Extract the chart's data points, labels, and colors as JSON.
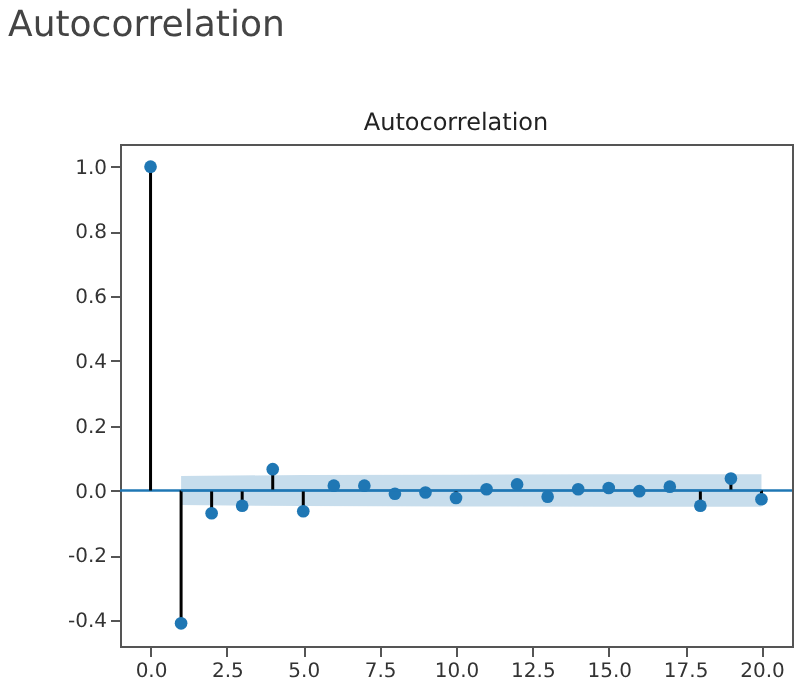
{
  "chart_data": {
    "type": "lollipop",
    "title": "Autocorrelation",
    "subtitle": "Autocorrelation",
    "x": [
      0,
      1,
      2,
      3,
      4,
      5,
      6,
      7,
      8,
      9,
      10,
      11,
      12,
      13,
      14,
      15,
      16,
      17,
      18,
      19,
      20
    ],
    "series": [
      {
        "color": "#1f77b4",
        "marker": "circle",
        "values": [
          1.0,
          -0.41,
          -0.07,
          -0.047,
          0.066,
          -0.064,
          0.015,
          0.015,
          -0.01,
          -0.006,
          -0.023,
          0.004,
          0.019,
          -0.019,
          0.004,
          0.008,
          -0.002,
          0.012,
          -0.047,
          0.037,
          -0.027
        ]
      },
      {
        "type": "line",
        "marker": "none",
        "color": "#1f77b4",
        "x": [
          1,
          5,
          10,
          15,
          20
        ],
        "values": [
          0,
          0,
          0,
          0,
          0
        ],
        "lower": [
          -0.045,
          -0.048,
          -0.049,
          -0.05,
          -0.05
        ],
        "upper": [
          0.045,
          0.048,
          0.049,
          0.05,
          0.05
        ]
      }
    ],
    "ref_lines": [
      {
        "axis": "y",
        "value": 0,
        "color": "#1f77b4"
      }
    ],
    "xlim": [
      -1,
      21
    ],
    "xticks": [
      {
        "value": 0,
        "label": "0.0"
      },
      {
        "value": 2.5,
        "label": "2.5"
      },
      {
        "value": 5,
        "label": "5.0"
      },
      {
        "value": 7.5,
        "label": "7.5"
      },
      {
        "value": 10,
        "label": "10.0"
      },
      {
        "value": 12.5,
        "label": "12.5"
      },
      {
        "value": 15,
        "label": "15.0"
      },
      {
        "value": 17.5,
        "label": "17.5"
      },
      {
        "value": 20,
        "label": "20.0"
      }
    ],
    "ylim": [
      -0.48,
      1.07
    ],
    "yticks": [
      {
        "value": -0.4,
        "label": "-0.4"
      },
      {
        "value": -0.2,
        "label": "-0.2"
      },
      {
        "value": 0,
        "label": "0.0"
      },
      {
        "value": 0.2,
        "label": "0.2"
      },
      {
        "value": 0.4,
        "label": "0.4"
      },
      {
        "value": 0.6,
        "label": "0.6"
      },
      {
        "value": 0.8,
        "label": "0.8"
      },
      {
        "value": 1,
        "label": "1.0"
      }
    ],
    "grid": false,
    "line_style": "solid"
  }
}
